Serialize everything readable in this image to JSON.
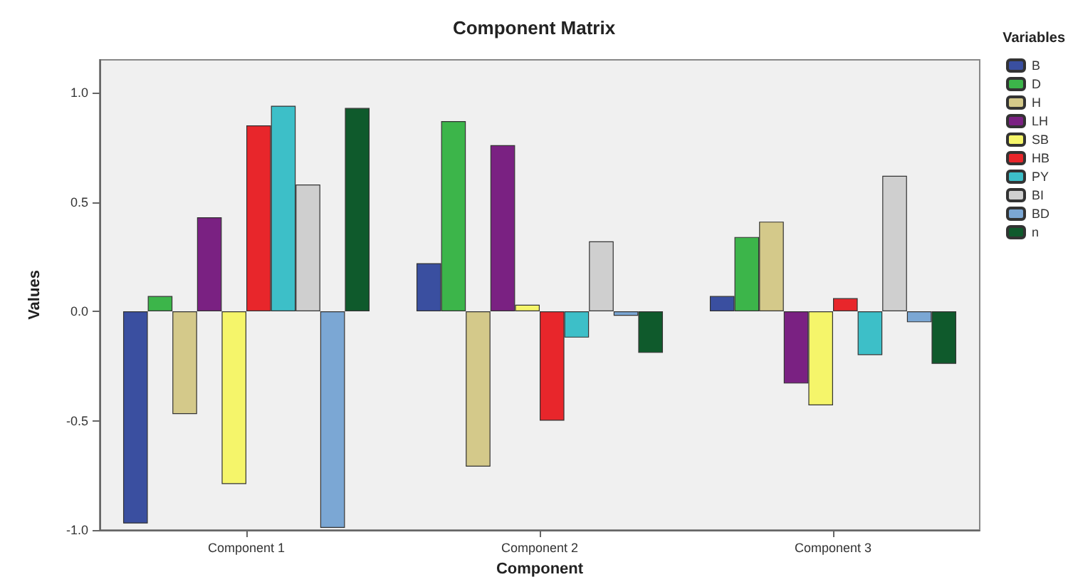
{
  "chart_data": {
    "type": "bar",
    "title": "Component Matrix",
    "xlabel": "Component",
    "ylabel": "Values",
    "legend_title": "Variables",
    "legend": "right",
    "grid": false,
    "categories": [
      "Component 1",
      "Component 2",
      "Component 3"
    ],
    "ylim": [
      -1,
      1.15
    ],
    "yticks": [
      {
        "value": -1,
        "label": "-1.0"
      },
      {
        "value": -0.5,
        "label": "-0.5"
      },
      {
        "value": 0,
        "label": "0.0"
      },
      {
        "value": 0.5,
        "label": "0.5"
      },
      {
        "value": 1,
        "label": "1.0"
      }
    ],
    "series": [
      {
        "name": "B",
        "color": "#3a4fa0",
        "values": [
          -0.97,
          0.22,
          0.07
        ]
      },
      {
        "name": "D",
        "color": "#3cb54a",
        "values": [
          0.07,
          0.87,
          0.34
        ]
      },
      {
        "name": "H",
        "color": "#d4c98a",
        "values": [
          -0.47,
          -0.71,
          0.41
        ]
      },
      {
        "name": "LH",
        "color": "#7a2182",
        "values": [
          0.43,
          0.76,
          -0.33
        ]
      },
      {
        "name": "SB",
        "color": "#f5f56a",
        "values": [
          -0.79,
          0.03,
          -0.43
        ]
      },
      {
        "name": "HB",
        "color": "#e8262b",
        "values": [
          0.85,
          -0.5,
          0.06
        ]
      },
      {
        "name": "PY",
        "color": "#3dbfc8",
        "values": [
          0.94,
          -0.12,
          -0.2
        ]
      },
      {
        "name": "BI",
        "color": "#cfcfcf",
        "values": [
          0.58,
          0.32,
          0.62
        ]
      },
      {
        "name": "BD",
        "color": "#7ba7d4",
        "values": [
          -0.99,
          -0.02,
          -0.05
        ]
      },
      {
        "name": "n",
        "color": "#0f5a2c",
        "values": [
          0.93,
          -0.19,
          -0.24
        ]
      }
    ]
  }
}
